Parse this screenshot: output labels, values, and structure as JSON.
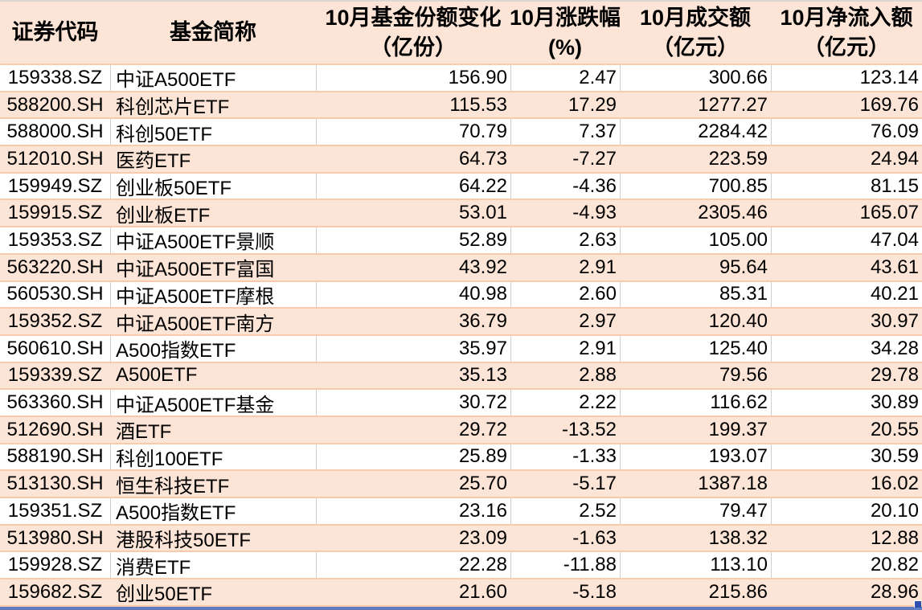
{
  "colors": {
    "row_fill_alt": "#fce4d6",
    "row_separator": "#f8cbad",
    "column_separator": "#d0cece",
    "selection_border": "#5b7cc0",
    "fill_handle": "#2e4fae"
  },
  "table": {
    "headers": {
      "code": "证券代码",
      "name": "基金简称",
      "share_change_line1": "10月基金份额变化",
      "share_change_line2": "（亿份）",
      "pct_change_line1": "10月涨跌幅",
      "pct_change_line2": "(%)",
      "turnover_line1": "10月成交额",
      "turnover_line2": "（亿元）",
      "net_inflow_line1": "10月净流入额",
      "net_inflow_line2": "（亿元）"
    },
    "rows": [
      {
        "code": "159338.SZ",
        "name": "中证A500ETF",
        "share_change": "156.90",
        "pct_change": "2.47",
        "turnover": "300.66",
        "net_inflow": "123.14"
      },
      {
        "code": "588200.SH",
        "name": "科创芯片ETF",
        "share_change": "115.53",
        "pct_change": "17.29",
        "turnover": "1277.27",
        "net_inflow": "169.76"
      },
      {
        "code": "588000.SH",
        "name": "科创50ETF",
        "share_change": "70.79",
        "pct_change": "7.37",
        "turnover": "2284.42",
        "net_inflow": "76.09"
      },
      {
        "code": "512010.SH",
        "name": "医药ETF",
        "share_change": "64.73",
        "pct_change": "-7.27",
        "turnover": "223.59",
        "net_inflow": "24.94"
      },
      {
        "code": "159949.SZ",
        "name": "创业板50ETF",
        "share_change": "64.22",
        "pct_change": "-4.36",
        "turnover": "700.85",
        "net_inflow": "81.15"
      },
      {
        "code": "159915.SZ",
        "name": "创业板ETF",
        "share_change": "53.01",
        "pct_change": "-4.93",
        "turnover": "2305.46",
        "net_inflow": "165.07"
      },
      {
        "code": "159353.SZ",
        "name": "中证A500ETF景顺",
        "share_change": "52.89",
        "pct_change": "2.63",
        "turnover": "105.00",
        "net_inflow": "47.04"
      },
      {
        "code": "563220.SH",
        "name": "中证A500ETF富国",
        "share_change": "43.92",
        "pct_change": "2.91",
        "turnover": "95.64",
        "net_inflow": "43.61"
      },
      {
        "code": "560530.SH",
        "name": "中证A500ETF摩根",
        "share_change": "40.98",
        "pct_change": "2.60",
        "turnover": "85.31",
        "net_inflow": "40.21"
      },
      {
        "code": "159352.SZ",
        "name": "中证A500ETF南方",
        "share_change": "36.79",
        "pct_change": "2.97",
        "turnover": "120.40",
        "net_inflow": "30.97"
      },
      {
        "code": "560610.SH",
        "name": "A500指数ETF",
        "share_change": "35.97",
        "pct_change": "2.91",
        "turnover": "125.40",
        "net_inflow": "34.28"
      },
      {
        "code": "159339.SZ",
        "name": "A500ETF",
        "share_change": "35.13",
        "pct_change": "2.88",
        "turnover": "79.56",
        "net_inflow": "29.78"
      },
      {
        "code": "563360.SH",
        "name": "中证A500ETF基金",
        "share_change": "30.72",
        "pct_change": "2.22",
        "turnover": "116.62",
        "net_inflow": "30.89"
      },
      {
        "code": "512690.SH",
        "name": "酒ETF",
        "share_change": "29.72",
        "pct_change": "-13.52",
        "turnover": "199.37",
        "net_inflow": "20.55"
      },
      {
        "code": "588190.SH",
        "name": "科创100ETF",
        "share_change": "25.89",
        "pct_change": "-1.33",
        "turnover": "193.07",
        "net_inflow": "30.59"
      },
      {
        "code": "513130.SH",
        "name": "恒生科技ETF",
        "share_change": "25.70",
        "pct_change": "-5.17",
        "turnover": "1387.18",
        "net_inflow": "16.02"
      },
      {
        "code": "159351.SZ",
        "name": "A500指数ETF",
        "share_change": "23.16",
        "pct_change": "2.52",
        "turnover": "79.47",
        "net_inflow": "20.10"
      },
      {
        "code": "513980.SH",
        "name": "港股科技50ETF",
        "share_change": "23.09",
        "pct_change": "-1.63",
        "turnover": "138.32",
        "net_inflow": "12.88"
      },
      {
        "code": "159928.SZ",
        "name": "消费ETF",
        "share_change": "22.28",
        "pct_change": "-11.88",
        "turnover": "113.10",
        "net_inflow": "20.82"
      },
      {
        "code": "159682.SZ",
        "name": "创业50ETF",
        "share_change": "21.60",
        "pct_change": "-5.18",
        "turnover": "215.86",
        "net_inflow": "28.96"
      }
    ]
  }
}
